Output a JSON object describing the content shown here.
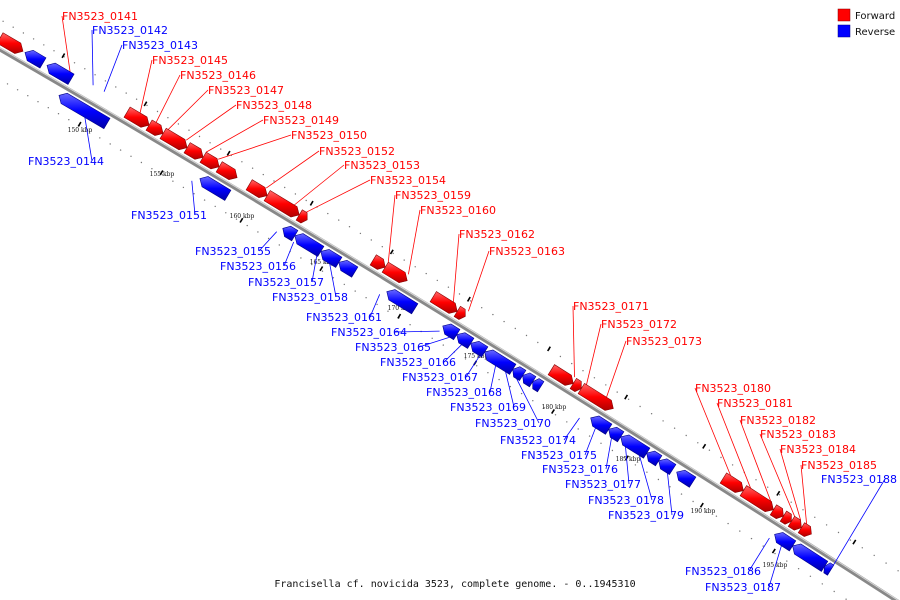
{
  "caption": "Francisella cf. novicida 3523, complete genome. - 0..1945310",
  "legend": [
    {
      "label": "Forward",
      "color": "#ff0000"
    },
    {
      "label": "Reverse",
      "color": "#0000ff"
    }
  ],
  "colors": {
    "forward": "#ff0000",
    "reverse": "#0000ff",
    "backbone": "#888888"
  },
  "ticks": [
    "150 kbp",
    "155 kbp",
    "160 kbp",
    "165 kbp",
    "170 kbp",
    "175 kbp",
    "180 kbp",
    "185 kbp",
    "190 kbp",
    "195 kbp"
  ],
  "genes": [
    {
      "label": "FN3523_0141",
      "strand": "forward"
    },
    {
      "label": "FN3523_0142",
      "strand": "reverse"
    },
    {
      "label": "FN3523_0143",
      "strand": "reverse"
    },
    {
      "label": "FN3523_0144",
      "strand": "reverse"
    },
    {
      "label": "FN3523_0145",
      "strand": "forward"
    },
    {
      "label": "FN3523_0146",
      "strand": "forward"
    },
    {
      "label": "FN3523_0147",
      "strand": "forward"
    },
    {
      "label": "FN3523_0148",
      "strand": "forward"
    },
    {
      "label": "FN3523_0149",
      "strand": "forward"
    },
    {
      "label": "FN3523_0150",
      "strand": "forward"
    },
    {
      "label": "FN3523_0151",
      "strand": "reverse"
    },
    {
      "label": "FN3523_0152",
      "strand": "forward"
    },
    {
      "label": "FN3523_0153",
      "strand": "forward"
    },
    {
      "label": "FN3523_0154",
      "strand": "forward"
    },
    {
      "label": "FN3523_0155",
      "strand": "reverse"
    },
    {
      "label": "FN3523_0156",
      "strand": "reverse"
    },
    {
      "label": "FN3523_0157",
      "strand": "reverse"
    },
    {
      "label": "FN3523_0158",
      "strand": "reverse"
    },
    {
      "label": "FN3523_0159",
      "strand": "forward"
    },
    {
      "label": "FN3523_0160",
      "strand": "forward"
    },
    {
      "label": "FN3523_0161",
      "strand": "reverse"
    },
    {
      "label": "FN3523_0162",
      "strand": "forward"
    },
    {
      "label": "FN3523_0163",
      "strand": "forward"
    },
    {
      "label": "FN3523_0164",
      "strand": "reverse"
    },
    {
      "label": "FN3523_0165",
      "strand": "reverse"
    },
    {
      "label": "FN3523_0166",
      "strand": "reverse"
    },
    {
      "label": "FN3523_0167",
      "strand": "reverse"
    },
    {
      "label": "FN3523_0168",
      "strand": "reverse"
    },
    {
      "label": "FN3523_0169",
      "strand": "reverse"
    },
    {
      "label": "FN3523_0170",
      "strand": "reverse"
    },
    {
      "label": "FN3523_0171",
      "strand": "forward"
    },
    {
      "label": "FN3523_0172",
      "strand": "forward"
    },
    {
      "label": "FN3523_0173",
      "strand": "forward"
    },
    {
      "label": "FN3523_0174",
      "strand": "reverse"
    },
    {
      "label": "FN3523_0175",
      "strand": "reverse"
    },
    {
      "label": "FN3523_0176",
      "strand": "reverse"
    },
    {
      "label": "FN3523_0177",
      "strand": "reverse"
    },
    {
      "label": "FN3523_0178",
      "strand": "reverse"
    },
    {
      "label": "FN3523_0179",
      "strand": "reverse"
    },
    {
      "label": "FN3523_0180",
      "strand": "forward"
    },
    {
      "label": "FN3523_0181",
      "strand": "forward"
    },
    {
      "label": "FN3523_0182",
      "strand": "forward"
    },
    {
      "label": "FN3523_0183",
      "strand": "forward"
    },
    {
      "label": "FN3523_0184",
      "strand": "forward"
    },
    {
      "label": "FN3523_0185",
      "strand": "forward"
    },
    {
      "label": "FN3523_0186",
      "strand": "reverse"
    },
    {
      "label": "FN3523_0187",
      "strand": "reverse"
    },
    {
      "label": "FN3523_0188",
      "strand": "reverse"
    }
  ]
}
